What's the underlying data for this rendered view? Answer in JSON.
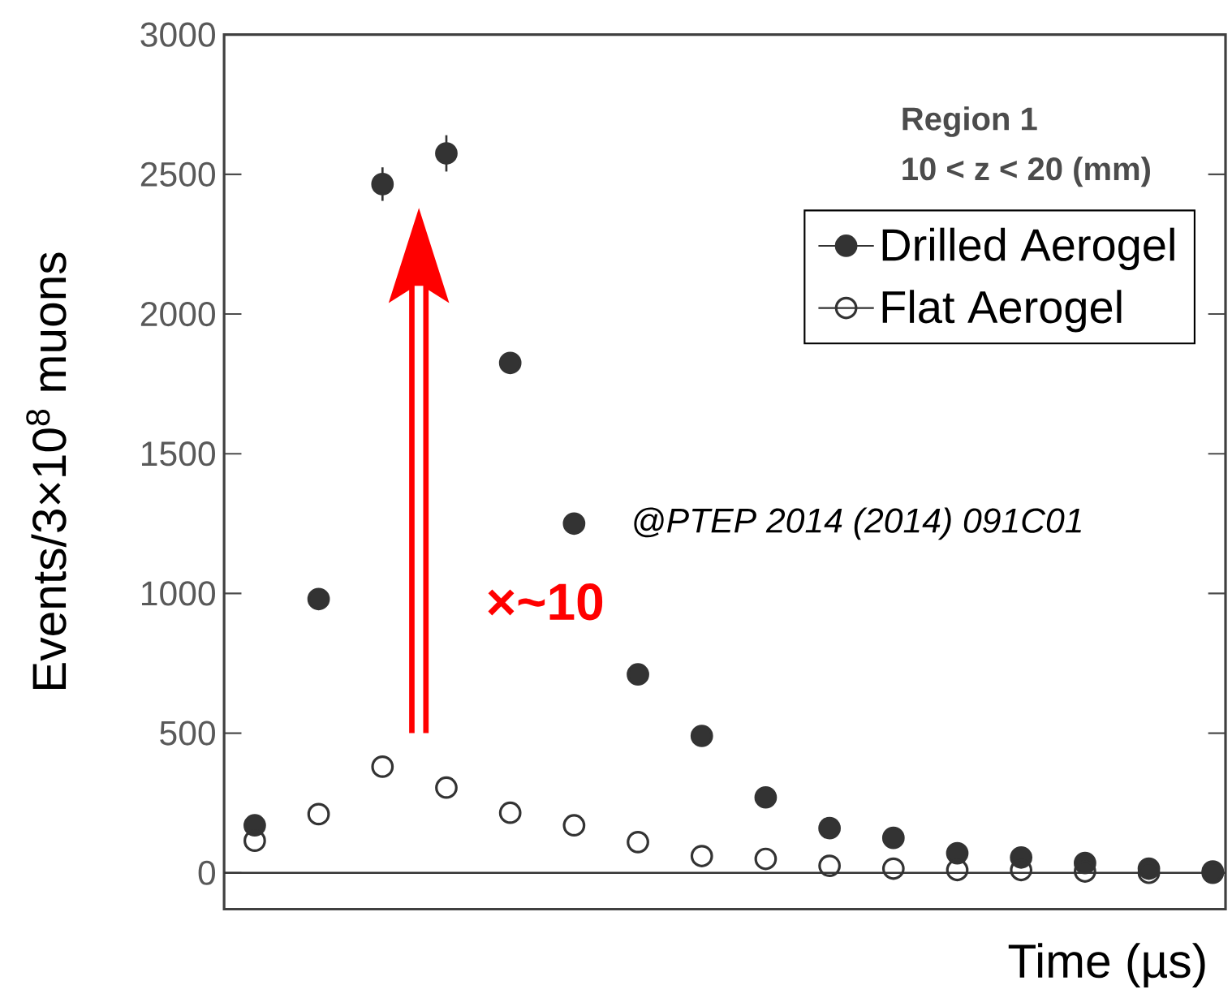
{
  "chart_data": {
    "type": "scatter",
    "xlabel": "Time (µs)",
    "ylabel": "Events/3×10$^{8}$ muons",
    "categories": [
      null,
      null,
      null,
      null,
      null,
      null,
      null,
      null,
      null,
      null,
      null,
      null,
      null,
      null,
      null,
      null
    ],
    "series": [
      {
        "name": "Drilled Aerogel",
        "color": "#333333",
        "values": [
          170,
          980,
          2465,
          2575,
          1825,
          1250,
          710,
          490,
          270,
          160,
          125,
          70,
          55,
          35,
          15,
          5
        ],
        "errors": [
          null,
          null,
          60,
          65,
          null,
          null,
          null,
          null,
          null,
          null,
          null,
          null,
          null,
          null,
          null,
          null
        ]
      },
      {
        "name": "Flat Aerogel",
        "color": "#333333",
        "values": [
          115,
          210,
          380,
          305,
          215,
          170,
          110,
          60,
          50,
          25,
          15,
          10,
          10,
          5,
          0,
          0
        ]
      }
    ],
    "ylim": [
      -130,
      3000
    ],
    "yticks": [
      0,
      500,
      1000,
      1500,
      2000,
      2500,
      3000
    ],
    "ref_lines": [
      {
        "axis": "y",
        "value": 0,
        "color": "#333333"
      }
    ],
    "annotations": [
      "**Region 1**",
      "**10 < z < 20 (mm)**",
      "*@PTEP 2014 (2014) 091C01*",
      "**×~10**"
    ],
    "marker": "circle",
    "legend": "top right",
    "grid": false
  }
}
